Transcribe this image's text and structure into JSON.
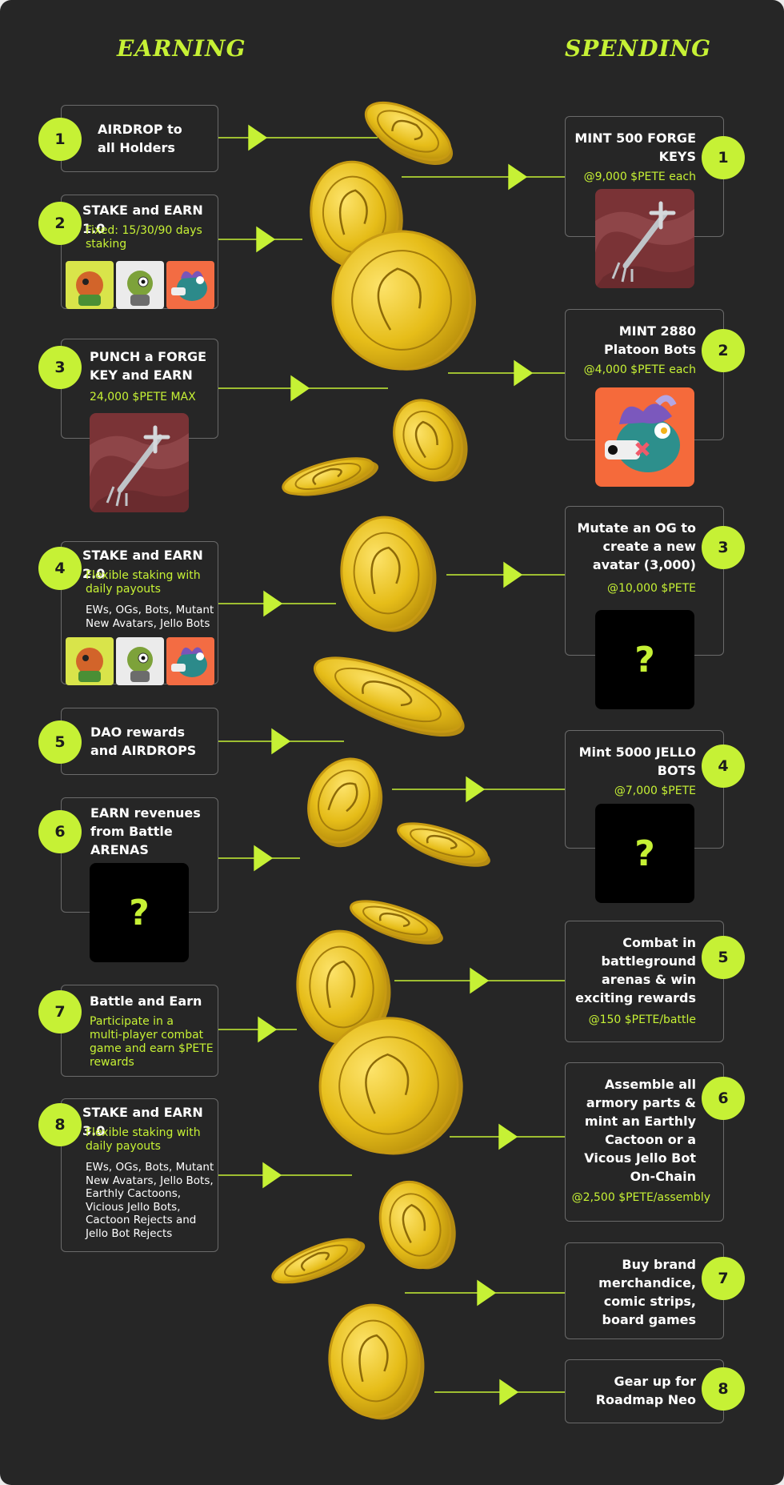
{
  "headings": {
    "earning": "EARNING",
    "spending": "SPENDING"
  },
  "earning": [
    {
      "num": "1",
      "title": "AIRDROP to\nall Holders"
    },
    {
      "num": "2",
      "title": "STAKE and EARN 1.0",
      "sub": "Fixed: 15/30/90 days\nstaking"
    },
    {
      "num": "3",
      "title": "PUNCH a FORGE\nKEY and EARN",
      "sub": "24,000 $PETE MAX"
    },
    {
      "num": "4",
      "title": "STAKE and EARN 2.0",
      "sub": "Flexible staking with\ndaily payouts",
      "desc": "EWs, OGs, Bots, Mutant\nNew Avatars, Jello Bots"
    },
    {
      "num": "5",
      "title": "DAO rewards\nand AIRDROPS"
    },
    {
      "num": "6",
      "title": "EARN revenues\nfrom Battle\nARENAS",
      "mystery": "?"
    },
    {
      "num": "7",
      "title": "Battle and Earn",
      "sub": "Participate in a\nmulti-player combat\ngame and earn $PETE\nrewards"
    },
    {
      "num": "8",
      "title": "STAKE and EARN 3.0",
      "sub": "Flexible staking with\ndaily payouts",
      "desc": "EWs, OGs, Bots, Mutant\nNew Avatars, Jello Bots,\nEarthly Cactoons,\nVicious Jello Bots,\nCactoon Rejects and\nJello Bot Rejects"
    }
  ],
  "spending": [
    {
      "num": "1",
      "title": "MINT 500 FORGE\nKEYS",
      "sub": "@9,000 $PETE each"
    },
    {
      "num": "2",
      "title": "MINT 2880\nPlatoon Bots",
      "sub": "@4,000 $PETE each"
    },
    {
      "num": "3",
      "title": "Mutate an OG to\ncreate a new\navatar (3,000)",
      "sub": "@10,000 $PETE",
      "mystery": "?"
    },
    {
      "num": "4",
      "title": "Mint 5000 JELLO\nBOTS",
      "sub": "@7,000 $PETE",
      "mystery": "?"
    },
    {
      "num": "5",
      "title": "Combat in\nbattleground\narenas & win\nexciting rewards",
      "sub": "@150 $PETE/battle"
    },
    {
      "num": "6",
      "title": "Assemble all\narmory parts &\nmint an Earthly\nCactoon or a\nVicous Jello Bot\nOn-Chain",
      "sub": "@2,500 $PETE/assembly"
    },
    {
      "num": "7",
      "title": "Buy brand\nmerchandice,\ncomic strips,\nboard games"
    },
    {
      "num": "8",
      "title": "Gear up for\nRoadmap Neo"
    }
  ],
  "colors": {
    "accent": "#c6f135",
    "background": "#262626",
    "card_border": "#6a6a6a",
    "coin": "#e9c21c"
  },
  "icons": [
    "forge-key-image",
    "platoon-bot-image",
    "coin-image",
    "mystery-question-mark"
  ]
}
